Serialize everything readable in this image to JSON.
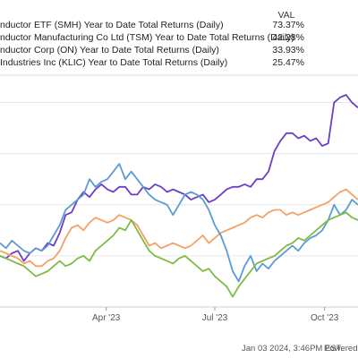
{
  "chart_data": {
    "type": "line",
    "ylabel": "",
    "xlabel": "",
    "legend": {
      "placement": "top",
      "value_header": "VAL"
    },
    "series": [
      {
        "name": "...nductor ETF (SMH) Year to Date Total Returns (Daily)",
        "last_value": "73.37%",
        "color": "#6a3ec6",
        "points": [
          [
            0,
            0
          ],
          [
            5,
            -1
          ],
          [
            10,
            1
          ],
          [
            15,
            2
          ],
          [
            20,
            -2
          ],
          [
            25,
            1
          ],
          [
            30,
            3
          ],
          [
            35,
            2
          ],
          [
            40,
            5
          ],
          [
            45,
            4
          ],
          [
            50,
            9
          ],
          [
            55,
            16
          ],
          [
            60,
            17
          ],
          [
            65,
            22
          ],
          [
            70,
            25
          ],
          [
            75,
            23
          ],
          [
            80,
            26
          ],
          [
            85,
            28
          ],
          [
            90,
            26
          ],
          [
            95,
            25
          ],
          [
            100,
            27
          ],
          [
            105,
            27
          ],
          [
            110,
            24
          ],
          [
            115,
            24
          ],
          [
            120,
            27
          ],
          [
            125,
            26
          ],
          [
            130,
            28
          ],
          [
            135,
            27
          ],
          [
            140,
            25
          ],
          [
            145,
            26
          ],
          [
            150,
            25
          ],
          [
            155,
            24
          ],
          [
            160,
            22
          ],
          [
            165,
            23
          ],
          [
            170,
            24
          ],
          [
            175,
            21
          ],
          [
            180,
            22
          ],
          [
            185,
            24
          ],
          [
            190,
            26
          ],
          [
            195,
            27
          ],
          [
            200,
            27
          ],
          [
            205,
            28
          ],
          [
            210,
            27
          ],
          [
            215,
            30
          ],
          [
            220,
            30
          ],
          [
            225,
            33
          ],
          [
            230,
            41
          ],
          [
            235,
            45
          ],
          [
            240,
            48
          ],
          [
            245,
            48
          ],
          [
            250,
            46
          ],
          [
            255,
            47
          ],
          [
            260,
            45
          ],
          [
            265,
            46
          ],
          [
            270,
            43
          ],
          [
            275,
            44
          ],
          [
            280,
            60
          ],
          [
            285,
            62
          ],
          [
            290,
            63
          ],
          [
            295,
            60
          ],
          [
            300,
            58
          ]
        ]
      },
      {
        "name": "...nductor Manufacturing Co Ltd (TSM) Year to Date Total Returns (Daily)",
        "last_value": "42.28%",
        "color": "#f4a067",
        "points": [
          [
            0,
            2
          ],
          [
            5,
            1
          ],
          [
            10,
            0
          ],
          [
            15,
            -1
          ],
          [
            20,
            -3
          ],
          [
            25,
            -2
          ],
          [
            30,
            -4
          ],
          [
            35,
            -4
          ],
          [
            40,
            -2
          ],
          [
            45,
            -1
          ],
          [
            50,
            2
          ],
          [
            55,
            7
          ],
          [
            60,
            11
          ],
          [
            65,
            12
          ],
          [
            70,
            10
          ],
          [
            75,
            13
          ],
          [
            80,
            15
          ],
          [
            85,
            14
          ],
          [
            90,
            13
          ],
          [
            95,
            14
          ],
          [
            100,
            16
          ],
          [
            105,
            15
          ],
          [
            110,
            14
          ],
          [
            115,
            12
          ],
          [
            120,
            8
          ],
          [
            125,
            4
          ],
          [
            130,
            5
          ],
          [
            135,
            3
          ],
          [
            140,
            4
          ],
          [
            145,
            5
          ],
          [
            150,
            4
          ],
          [
            155,
            3
          ],
          [
            160,
            4
          ],
          [
            165,
            6
          ],
          [
            170,
            8
          ],
          [
            175,
            5
          ],
          [
            180,
            7
          ],
          [
            185,
            9
          ],
          [
            190,
            10
          ],
          [
            195,
            11
          ],
          [
            200,
            12
          ],
          [
            205,
            13
          ],
          [
            210,
            15
          ],
          [
            215,
            16
          ],
          [
            220,
            15
          ],
          [
            225,
            17
          ],
          [
            230,
            18
          ],
          [
            235,
            18
          ],
          [
            240,
            16
          ],
          [
            245,
            17
          ],
          [
            250,
            16
          ],
          [
            255,
            17
          ],
          [
            260,
            18
          ],
          [
            265,
            19
          ],
          [
            270,
            20
          ],
          [
            275,
            21
          ],
          [
            280,
            23
          ],
          [
            285,
            25
          ],
          [
            290,
            26
          ],
          [
            295,
            24
          ],
          [
            300,
            22
          ]
        ]
      },
      {
        "name": "...nductor Corp (ON) Year to Date Total Returns (Daily)",
        "last_value": "33.93%",
        "color": "#5b9bd5",
        "points": [
          [
            0,
            5
          ],
          [
            5,
            3
          ],
          [
            10,
            6
          ],
          [
            15,
            4
          ],
          [
            20,
            2
          ],
          [
            25,
            1
          ],
          [
            30,
            3
          ],
          [
            35,
            2
          ],
          [
            40,
            4
          ],
          [
            45,
            8
          ],
          [
            50,
            12
          ],
          [
            55,
            18
          ],
          [
            60,
            20
          ],
          [
            65,
            22
          ],
          [
            70,
            24
          ],
          [
            75,
            30
          ],
          [
            80,
            27
          ],
          [
            85,
            29
          ],
          [
            90,
            30
          ],
          [
            95,
            33
          ],
          [
            100,
            36
          ],
          [
            105,
            30
          ],
          [
            110,
            33
          ],
          [
            115,
            30
          ],
          [
            120,
            27
          ],
          [
            125,
            24
          ],
          [
            130,
            22
          ],
          [
            135,
            21
          ],
          [
            140,
            20
          ],
          [
            145,
            16
          ],
          [
            150,
            20
          ],
          [
            155,
            24
          ],
          [
            160,
            25
          ],
          [
            165,
            24
          ],
          [
            170,
            22
          ],
          [
            175,
            18
          ],
          [
            180,
            12
          ],
          [
            185,
            8
          ],
          [
            190,
            2
          ],
          [
            195,
            -6
          ],
          [
            200,
            -10
          ],
          [
            205,
            -4
          ],
          [
            210,
            0
          ],
          [
            215,
            -6
          ],
          [
            220,
            -3
          ],
          [
            225,
            -5
          ],
          [
            230,
            -2
          ],
          [
            235,
            0
          ],
          [
            240,
            2
          ],
          [
            245,
            4
          ],
          [
            250,
            2
          ],
          [
            255,
            5
          ],
          [
            260,
            7
          ],
          [
            265,
            8
          ],
          [
            270,
            10
          ],
          [
            275,
            14
          ],
          [
            280,
            20
          ],
          [
            285,
            16
          ],
          [
            290,
            18
          ],
          [
            295,
            22
          ],
          [
            300,
            20
          ]
        ]
      },
      {
        "name": "...Industries Inc (KLIC) Year to Date Total Returns (Daily)",
        "last_value": "25.47%",
        "color": "#7dbb42",
        "points": [
          [
            0,
            0
          ],
          [
            5,
            -1
          ],
          [
            10,
            -2
          ],
          [
            15,
            -3
          ],
          [
            20,
            -4
          ],
          [
            25,
            -6
          ],
          [
            30,
            -8
          ],
          [
            35,
            -7
          ],
          [
            40,
            -6
          ],
          [
            45,
            -4
          ],
          [
            50,
            -2
          ],
          [
            55,
            -4
          ],
          [
            60,
            -3
          ],
          [
            65,
            -1
          ],
          [
            70,
            0
          ],
          [
            75,
            -2
          ],
          [
            80,
            2
          ],
          [
            85,
            4
          ],
          [
            90,
            6
          ],
          [
            95,
            8
          ],
          [
            100,
            11
          ],
          [
            105,
            10
          ],
          [
            110,
            14
          ],
          [
            115,
            10
          ],
          [
            120,
            6
          ],
          [
            125,
            2
          ],
          [
            130,
            0
          ],
          [
            135,
            -1
          ],
          [
            140,
            -2
          ],
          [
            145,
            -3
          ],
          [
            150,
            -1
          ],
          [
            155,
            0
          ],
          [
            160,
            -2
          ],
          [
            165,
            -4
          ],
          [
            170,
            -6
          ],
          [
            175,
            -5
          ],
          [
            180,
            -8
          ],
          [
            185,
            -10
          ],
          [
            190,
            -12
          ],
          [
            195,
            -16
          ],
          [
            200,
            -12
          ],
          [
            205,
            -9
          ],
          [
            210,
            -6
          ],
          [
            215,
            -3
          ],
          [
            220,
            -2
          ],
          [
            225,
            -1
          ],
          [
            230,
            0
          ],
          [
            235,
            2
          ],
          [
            240,
            4
          ],
          [
            245,
            5
          ],
          [
            250,
            7
          ],
          [
            255,
            6
          ],
          [
            260,
            8
          ],
          [
            265,
            10
          ],
          [
            270,
            12
          ],
          [
            275,
            14
          ],
          [
            280,
            15
          ],
          [
            285,
            16
          ],
          [
            290,
            17
          ],
          [
            295,
            15
          ],
          [
            300,
            14
          ]
        ]
      }
    ],
    "x_ticks": [
      {
        "label": "Apr '23",
        "x": 89
      },
      {
        "label": "Jul '23",
        "x": 180
      },
      {
        "label": "Oct '23",
        "x": 272
      }
    ],
    "x_range": [
      0,
      300
    ],
    "y_range": [
      -20,
      70
    ],
    "grid": true,
    "footer": {
      "timestamp": "Jan 03 2024, 3:46PM EST.",
      "powered": "Powered by"
    }
  }
}
